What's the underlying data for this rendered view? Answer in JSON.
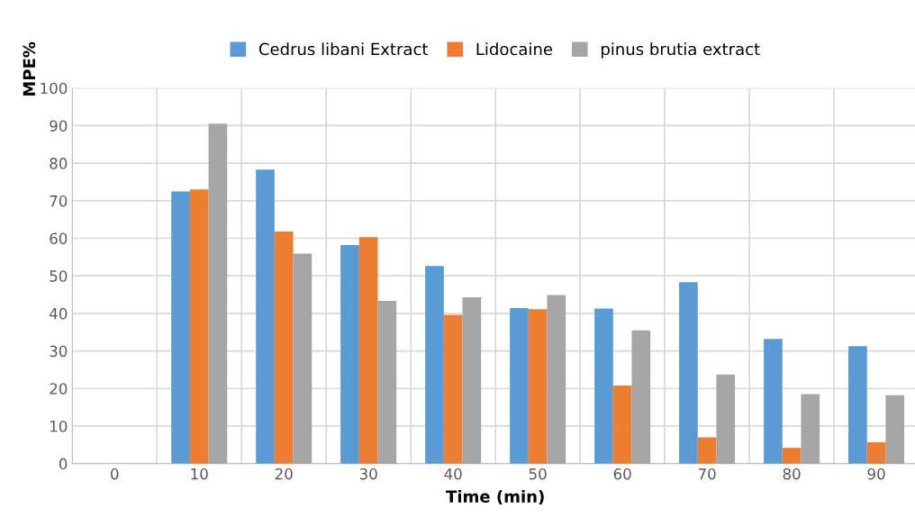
{
  "chart_data": {
    "type": "bar",
    "xlabel": "Time (min)",
    "ylabel": "MPE%",
    "categories": [
      "0",
      "10",
      "20",
      "30",
      "40",
      "50",
      "60",
      "70",
      "80",
      "90"
    ],
    "series": [
      {
        "name": "Cedrus libani Extract",
        "color": "#5b9bd5",
        "values": [
          0,
          72.5,
          78.3,
          58.2,
          52.6,
          41.4,
          41.3,
          48.3,
          33.2,
          31.3
        ]
      },
      {
        "name": "Lidocaine",
        "color": "#ed7d31",
        "values": [
          0,
          73,
          61.8,
          60.3,
          39.6,
          41.1,
          20.8,
          7.0,
          4.2,
          5.7
        ]
      },
      {
        "name": "pinus brutia extract",
        "color": "#a5a5a5",
        "values": [
          0,
          90.5,
          55.9,
          43.3,
          44.3,
          44.9,
          35.5,
          23.7,
          18.5,
          18.2
        ]
      }
    ],
    "ylim": [
      0,
      100
    ],
    "yticks": [
      0,
      10,
      20,
      30,
      40,
      50,
      60,
      70,
      80,
      90,
      100
    ],
    "grid": true,
    "legend": "top"
  }
}
